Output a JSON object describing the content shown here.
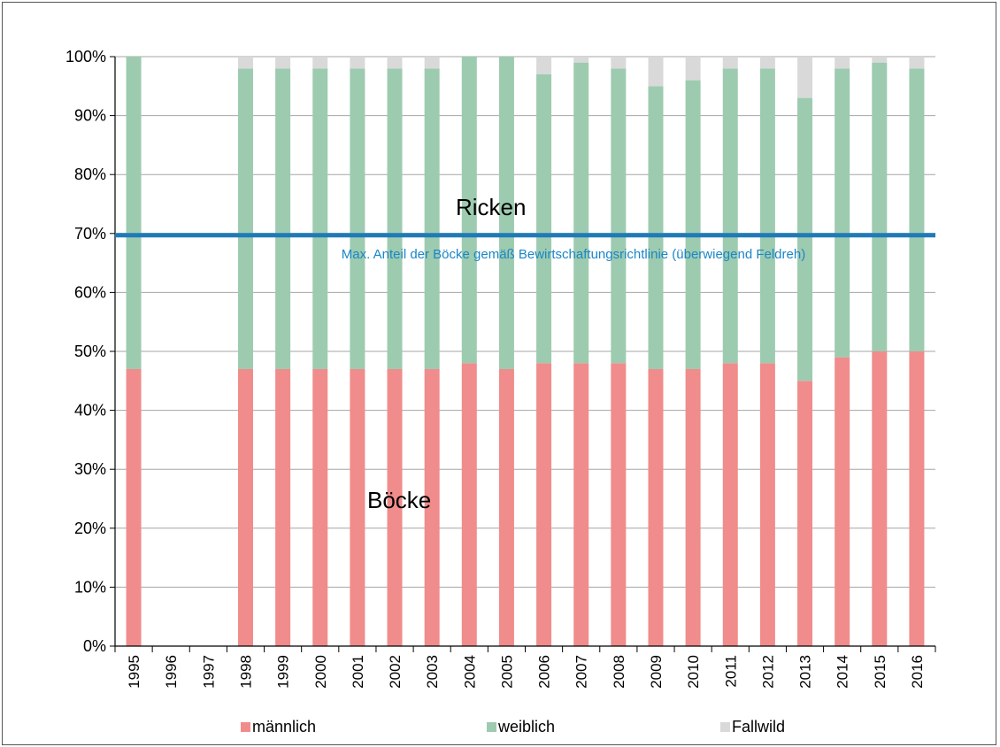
{
  "chart_data": {
    "type": "bar",
    "stacked": true,
    "categories": [
      "1995",
      "1996",
      "1997",
      "1998",
      "1999",
      "2000",
      "2001",
      "2002",
      "2003",
      "2004",
      "2005",
      "2006",
      "2007",
      "2008",
      "2009",
      "2010",
      "2011",
      "2012",
      "2013",
      "2014",
      "2015",
      "2016"
    ],
    "series": [
      {
        "name": "männlich",
        "color": "#f08c8c",
        "values": [
          47,
          0,
          0,
          47,
          47,
          47,
          47,
          47,
          47,
          48,
          47,
          48,
          48,
          48,
          47,
          47,
          48,
          48,
          45,
          49,
          50,
          50
        ]
      },
      {
        "name": "weiblich",
        "color": "#9dcbb0",
        "values": [
          53,
          0,
          0,
          51,
          51,
          51,
          51,
          51,
          51,
          52,
          53,
          49,
          51,
          50,
          48,
          49,
          50,
          50,
          48,
          49,
          49,
          48
        ]
      },
      {
        "name": "Fallwild",
        "color": "#d9d9d9",
        "values": [
          0,
          0,
          0,
          2,
          2,
          2,
          2,
          2,
          2,
          0,
          0,
          3,
          1,
          2,
          5,
          4,
          2,
          2,
          7,
          2,
          1,
          2
        ]
      }
    ],
    "ylim": [
      0,
      100
    ],
    "yticks": [
      "0%",
      "10%",
      "20%",
      "30%",
      "40%",
      "50%",
      "60%",
      "70%",
      "80%",
      "90%",
      "100%"
    ],
    "grid": true,
    "legend_position": "bottom",
    "reference_line": {
      "value": 69.7,
      "color": "#1f7ab8",
      "label": "Max. Anteil  der Böcke gemäß Bewirtschaftungsrichtlinie (überwiegend Feldreh)"
    },
    "annotations": {
      "upper": "Ricken",
      "lower": "Böcke"
    }
  }
}
